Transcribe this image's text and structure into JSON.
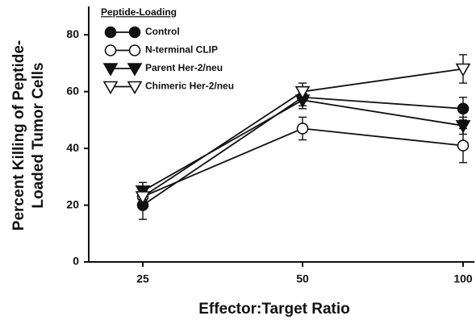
{
  "chart_data": {
    "type": "line",
    "legend_title": "Peptide-Loading",
    "x_label": "Effector:Target Ratio",
    "y_label": [
      "Percent Killing of Peptide-",
      "Loaded Tumor Cells"
    ],
    "categories": [
      "25",
      "50",
      "100"
    ],
    "ylim": [
      0,
      90
    ],
    "yticks": [
      0,
      20,
      40,
      60,
      80
    ],
    "series": [
      {
        "name": "Control",
        "color": "#111111",
        "marker": "circle",
        "filled": true,
        "values": [
          20,
          58,
          54
        ],
        "errors": [
          5,
          3,
          4
        ]
      },
      {
        "name": "N-terminal CLIP",
        "color": "#111111",
        "marker": "circle",
        "filled": false,
        "values": [
          23,
          47,
          41
        ],
        "errors": [
          3,
          4,
          6
        ]
      },
      {
        "name": "Parent Her-2/neu",
        "color": "#111111",
        "marker": "triangle-down",
        "filled": true,
        "values": [
          25,
          57,
          48
        ],
        "errors": [
          3,
          3,
          3
        ]
      },
      {
        "name": "Chimeric Her-2/neu",
        "color": "#111111",
        "marker": "triangle-down",
        "filled": false,
        "values": [
          23,
          60,
          68
        ],
        "errors": [
          3,
          3,
          5
        ]
      }
    ]
  }
}
